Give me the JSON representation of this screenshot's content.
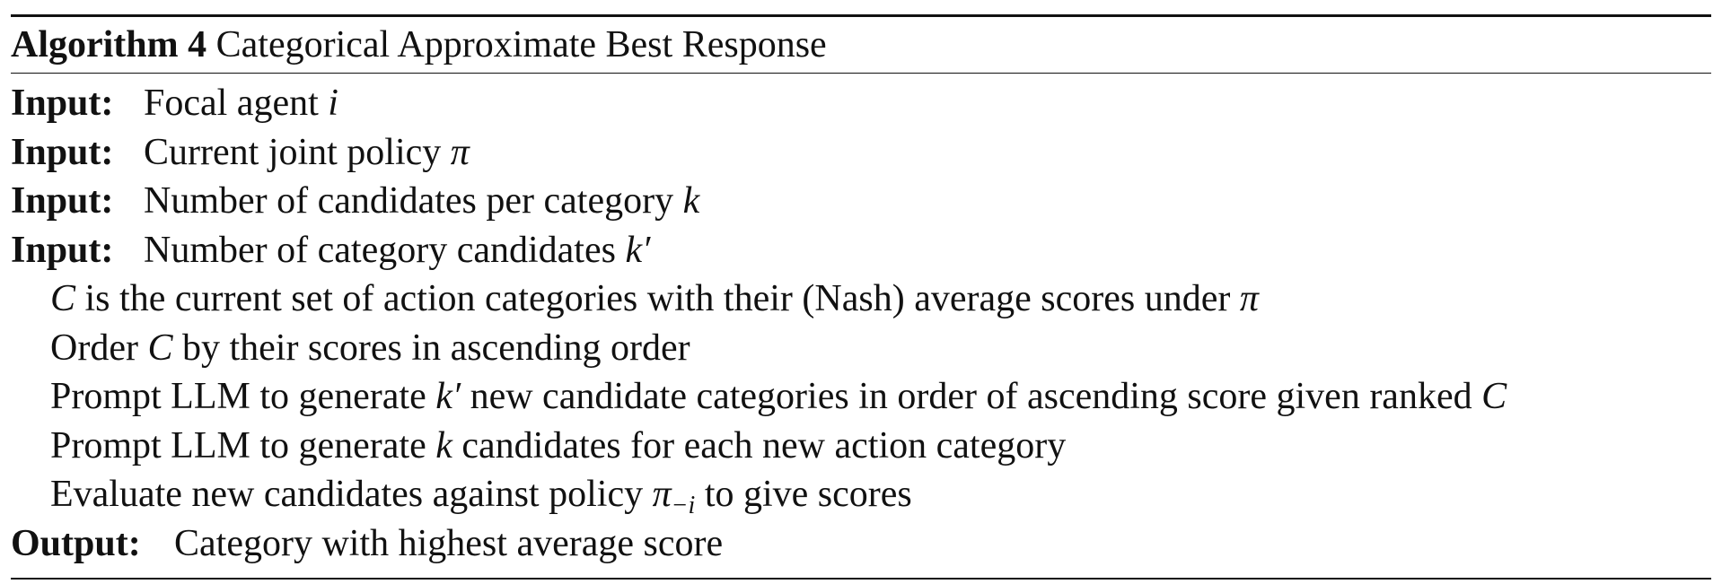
{
  "algorithm": {
    "label": "Algorithm 4",
    "title": "Categorical Approximate Best Response",
    "inputs": [
      {
        "keyword": "Input:",
        "text": "Focal agent ",
        "math": "i"
      },
      {
        "keyword": "Input:",
        "text": "Current joint policy ",
        "math": "π"
      },
      {
        "keyword": "Input:",
        "text": "Number of candidates per category ",
        "math": "k"
      },
      {
        "keyword": "Input:",
        "text": "Number of category candidates ",
        "math": "k′"
      }
    ],
    "steps": [
      {
        "m1": "C",
        "t1": " is the current set of action categories with their (Nash) average scores under ",
        "m2": "π"
      },
      {
        "t1": "Order ",
        "m1": "C",
        "t2": " by their scores in ascending order"
      },
      {
        "t1": "Prompt LLM to generate ",
        "m1": "k′",
        "t2": " new candidate categories in order of ascending score given ranked ",
        "m2": "C"
      },
      {
        "t1": "Prompt LLM to generate ",
        "m1": "k",
        "t2": " candidates for each new action category"
      },
      {
        "t1": "Evaluate new candidates against policy ",
        "m1": "π",
        "sub": "−i",
        "t2": " to give scores"
      }
    ],
    "output": {
      "keyword": "Output:",
      "text": "Category with highest average score"
    }
  }
}
